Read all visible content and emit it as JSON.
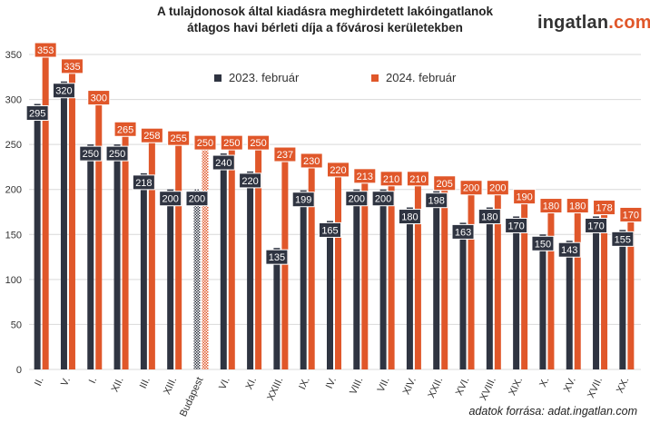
{
  "title": {
    "line1": "A tulajdonosok által kiadásra meghirdetett lakóingatlanok",
    "line2": "átlagos havi bérleti díja a fővárosi kerületekben"
  },
  "logo": {
    "part1": "ingatlan",
    "part2": ".",
    "part3": "com"
  },
  "source": "adatok forrása: adat.ingatlan.com",
  "colors": {
    "series1": "#2f3441",
    "series2": "#e0572a",
    "grid": "#d9d9d9",
    "label_text": "#ffffff"
  },
  "chart_data": {
    "type": "bar",
    "categories": [
      "II.",
      "V.",
      "I.",
      "XII.",
      "III.",
      "XIII.",
      "Budapest",
      "VI.",
      "XI.",
      "XXIII.",
      "IX.",
      "IV.",
      "VIII.",
      "VII.",
      "XIV.",
      "XXII.",
      "XVI.",
      "XVIII.",
      "XIX.",
      "X.",
      "XV.",
      "XVII.",
      "XX."
    ],
    "series": [
      {
        "name": "2023. február",
        "values": [
          295,
          320,
          250,
          250,
          218,
          200,
          200,
          240,
          220,
          135,
          199,
          165,
          200,
          200,
          180,
          198,
          163,
          180,
          170,
          150,
          143,
          170,
          155
        ]
      },
      {
        "name": "2024. február",
        "values": [
          353,
          335,
          300,
          265,
          258,
          255,
          250,
          250,
          250,
          237,
          230,
          220,
          213,
          210,
          210,
          205,
          200,
          200,
          190,
          180,
          180,
          178,
          170
        ]
      }
    ],
    "hatched_category": "Budapest",
    "yticks": [
      0,
      50,
      100,
      150,
      200,
      250,
      300,
      350
    ],
    "ylim": [
      0,
      370
    ],
    "grid": true,
    "legend_position": "top-center"
  }
}
